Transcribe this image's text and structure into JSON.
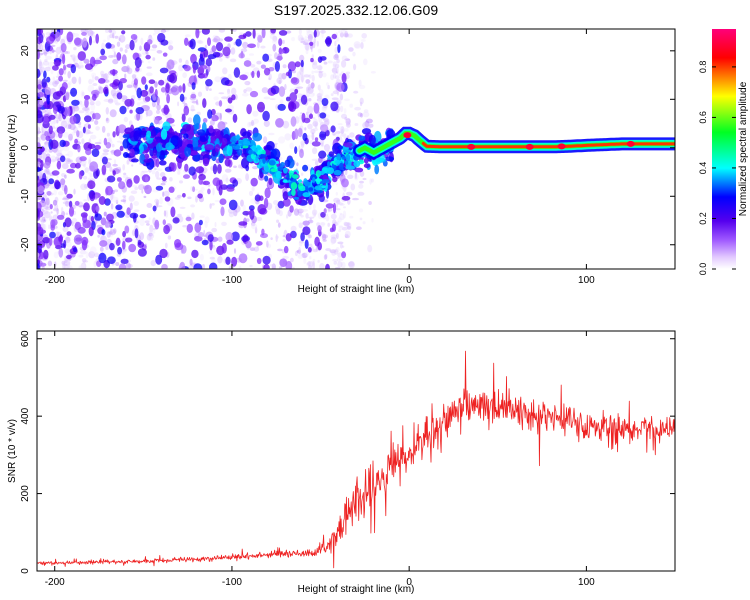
{
  "title": "S197.2025.332.12.06.G09",
  "chart_data": [
    {
      "type": "heatmap",
      "title": "S197.2025.332.12.06.G09",
      "xlabel": "Height of straight line (km)",
      "ylabel": "Frequency (Hz)",
      "xlim": [
        -210,
        150
      ],
      "ylim": [
        -25,
        24.5
      ],
      "xticks": [
        -200,
        -100,
        0,
        100
      ],
      "yticks": [
        -20,
        -10,
        0,
        10,
        20
      ],
      "xticklabels": [
        "-200",
        "-100",
        "0",
        "100"
      ],
      "yticklabels": [
        "-20",
        "-10",
        "0",
        "10",
        "20"
      ],
      "ridge": {
        "x": [
          -100,
          -90,
          -80,
          -70,
          -60,
          -50,
          -40,
          -30,
          -25,
          -20,
          -15,
          -10,
          -5,
          -2,
          0,
          3,
          6,
          10,
          20,
          40,
          60,
          80,
          90,
          100,
          120,
          150
        ],
        "y": [
          1,
          0,
          -3,
          -6,
          -9,
          -7,
          -3,
          -1,
          0,
          -1,
          0,
          1,
          2,
          3,
          3,
          2.5,
          1.5,
          0.3,
          0.2,
          0.2,
          0.2,
          0.2,
          0.3,
          0.5,
          0.8,
          0.8
        ]
      },
      "colorbar": {
        "label": "Normalized spectral amplitude",
        "range": [
          0,
          0.95
        ],
        "ticks": [
          0.0,
          0.2,
          0.4,
          0.6,
          0.8
        ],
        "ticklabels": [
          "0.0",
          "0.2",
          "0.4",
          "0.6",
          "0.8"
        ]
      }
    },
    {
      "type": "line",
      "xlabel": "Height of straight line (km)",
      "ylabel": "SNR (10 * v/v)",
      "xlim": [
        -210,
        150
      ],
      "ylim": [
        0,
        620
      ],
      "xticks": [
        -200,
        -100,
        0,
        100
      ],
      "yticks": [
        0,
        200,
        400,
        600
      ],
      "xticklabels": [
        "-200",
        "-100",
        "0",
        "100"
      ],
      "yticklabels": [
        "0",
        "200",
        "400",
        "600"
      ],
      "series": [
        {
          "name": "SNR",
          "color": "#ee2222",
          "x": [
            -210,
            -150,
            -100,
            -70,
            -55,
            -45,
            -38,
            -32,
            -26,
            -20,
            -15,
            -10,
            -5,
            0,
            10,
            20,
            30,
            40,
            50,
            60,
            70,
            80,
            90,
            100,
            110,
            120,
            135,
            150
          ],
          "y": [
            20,
            25,
            35,
            45,
            45,
            65,
            110,
            180,
            200,
            200,
            235,
            270,
            290,
            300,
            350,
            380,
            430,
            420,
            420,
            415,
            400,
            400,
            390,
            375,
            370,
            370,
            365,
            365
          ],
          "noise": [
            5,
            6,
            8,
            10,
            10,
            30,
            60,
            80,
            80,
            80,
            60,
            50,
            50,
            50,
            50,
            60,
            60,
            60,
            55,
            50,
            45,
            40,
            40,
            40,
            35,
            35,
            35,
            35
          ]
        }
      ]
    }
  ],
  "colors": {
    "snr_line": "#ee2222",
    "colormap": [
      "#ffffff",
      "#ece0ff",
      "#c9a2ff",
      "#8a37ff",
      "#5a00ee",
      "#0000ff",
      "#00ffff",
      "#00ff22",
      "#ffff00",
      "#ff0000",
      "#ff007a"
    ]
  }
}
